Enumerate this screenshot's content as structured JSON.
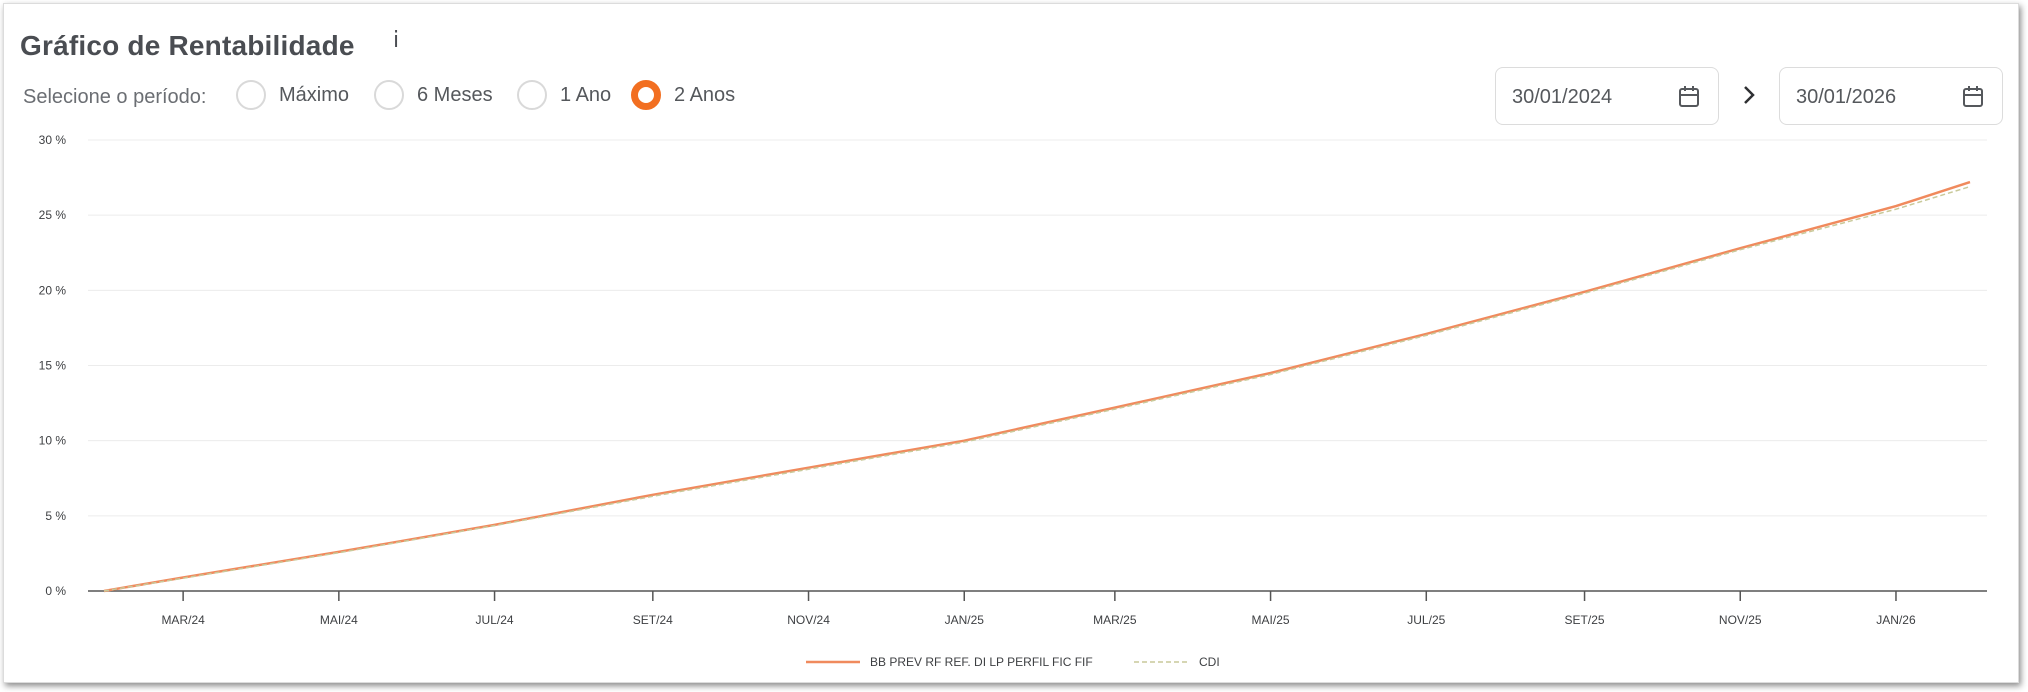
{
  "header": {
    "title": "Gráfico de Rentabilidade",
    "info_icon": "i"
  },
  "period": {
    "label": "Selecione o período:",
    "options": [
      "Máximo",
      "6 Meses",
      "1 Ano",
      "2 Anos"
    ],
    "selected": "2 Anos"
  },
  "dates": {
    "start": "30/01/2024",
    "end": "30/01/2026",
    "separator_icon": "chevron-right-icon",
    "calendar_icon": "calendar-icon"
  },
  "colors": {
    "accent": "#f26f21",
    "fund_line": "#f08a5d",
    "cdi_line": "#c9c99a",
    "grid": "#ececec",
    "axis": "#555555"
  },
  "chart_data": {
    "type": "line",
    "y_ticks": [
      "0 %",
      "5 %",
      "10 %",
      "15 %",
      "20 %",
      "25 %",
      "30 %"
    ],
    "ylim": [
      0,
      30
    ],
    "x_ticks": [
      "MAR/24",
      "MAI/24",
      "JUL/24",
      "SET/24",
      "NOV/24",
      "JAN/25",
      "MAR/25",
      "MAI/25",
      "JUL/25",
      "SET/25",
      "NOV/25",
      "JAN/26"
    ],
    "xlim": [
      "2024-01-30",
      "2026-01-30"
    ],
    "grid": true,
    "legend_position": "bottom",
    "series": [
      {
        "name": "BB PREV RF REF. DI LP PERFIL FIC FIF",
        "style": "solid",
        "x": [
          "2024-01-30",
          "2024-03-01",
          "2024-05-01",
          "2024-07-01",
          "2024-09-01",
          "2024-11-01",
          "2025-01-01",
          "2025-03-01",
          "2025-05-01",
          "2025-07-01",
          "2025-09-01",
          "2025-11-01",
          "2026-01-01",
          "2026-01-30"
        ],
        "values": [
          0,
          0.9,
          2.6,
          4.4,
          6.4,
          8.2,
          10.0,
          12.2,
          14.5,
          17.1,
          19.9,
          22.8,
          25.6,
          27.2
        ]
      },
      {
        "name": "CDI",
        "style": "dashed",
        "x": [
          "2024-01-30",
          "2024-03-01",
          "2024-05-01",
          "2024-07-01",
          "2024-09-01",
          "2024-11-01",
          "2025-01-01",
          "2025-03-01",
          "2025-05-01",
          "2025-07-01",
          "2025-09-01",
          "2025-11-01",
          "2026-01-01",
          "2026-01-30"
        ],
        "values": [
          0,
          0.85,
          2.55,
          4.35,
          6.3,
          8.1,
          9.9,
          12.1,
          14.4,
          17.0,
          19.8,
          22.7,
          25.4,
          26.9
        ]
      }
    ]
  }
}
